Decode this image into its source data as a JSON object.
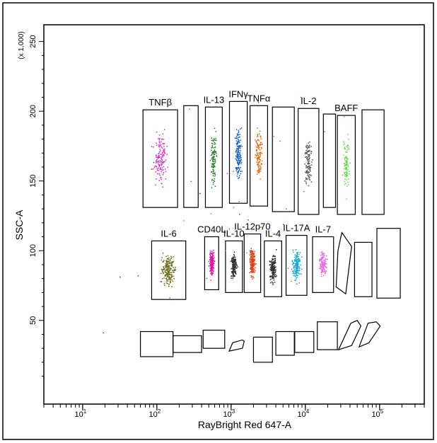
{
  "chart_data": {
    "type": "scatter",
    "xlabel": "RayBright Red 647-A",
    "ylabel": "SSC-A",
    "y_scale_note": "(x 1,000)",
    "x_scale": "log",
    "xlim": [
      3,
      400000
    ],
    "ylim": [
      -10,
      262
    ],
    "x_ticks": [
      {
        "value": 10,
        "base": "10",
        "exp": "1"
      },
      {
        "value": 100,
        "base": "10",
        "exp": "2"
      },
      {
        "value": 1000,
        "base": "10",
        "exp": "3"
      },
      {
        "value": 10000,
        "base": "10",
        "exp": "4"
      },
      {
        "value": 100000,
        "base": "10",
        "exp": "5"
      }
    ],
    "y_ticks": [
      {
        "value": 50,
        "label": "50"
      },
      {
        "value": 100,
        "label": "100"
      },
      {
        "value": 150,
        "label": "150"
      },
      {
        "value": 200,
        "label": "200"
      },
      {
        "value": 250,
        "label": "250"
      }
    ],
    "gates": [
      {
        "label": "TNFβ",
        "shape": "rect",
        "x": [
          65,
          190
        ],
        "y": [
          131,
          201
        ],
        "color": "#cc33cc",
        "n": 140
      },
      {
        "label": "",
        "shape": "rect",
        "x": [
          230,
          360
        ],
        "y": [
          131,
          204
        ],
        "color": "",
        "n": 0
      },
      {
        "label": "IL-13",
        "shape": "rect",
        "x": [
          450,
          760
        ],
        "y": [
          131,
          203
        ],
        "color": "#2e7d32",
        "n": 110
      },
      {
        "label": "IFNγ",
        "shape": "rect",
        "x": [
          950,
          1650
        ],
        "y": [
          134,
          207
        ],
        "color": "#1565c0",
        "n": 150
      },
      {
        "label": "TNFα",
        "shape": "rect",
        "x": [
          1800,
          3100
        ],
        "y": [
          132,
          204
        ],
        "color": "#e07020",
        "n": 120
      },
      {
        "label": "",
        "shape": "rect",
        "x": [
          3600,
          7100
        ],
        "y": [
          128,
          203
        ],
        "color": "",
        "n": 0
      },
      {
        "label": "IL-2",
        "shape": "rect",
        "x": [
          8000,
          15200
        ],
        "y": [
          126,
          202
        ],
        "color": "#555555",
        "n": 110
      },
      {
        "label": "",
        "shape": "rect",
        "x": [
          17500,
          25500
        ],
        "y": [
          131,
          198
        ],
        "color": "",
        "n": 0
      },
      {
        "label": "BAFF",
        "shape": "rect",
        "x": [
          27000,
          47000
        ],
        "y": [
          126,
          197
        ],
        "color": "#66dd55",
        "n": 100
      },
      {
        "label": "",
        "shape": "rect",
        "x": [
          58000,
          115000
        ],
        "y": [
          126,
          201
        ],
        "color": "",
        "n": 0
      },
      {
        "label": "IL-6",
        "shape": "rect",
        "x": [
          85,
          245
        ],
        "y": [
          65,
          107
        ],
        "color": "#6b6b1a",
        "n": 200
      },
      {
        "label": "CD40L",
        "shape": "rect",
        "x": [
          440,
          680
        ],
        "y": [
          72,
          110
        ],
        "color": "#e0169e",
        "n": 170
      },
      {
        "label": "IL-10",
        "shape": "rect",
        "x": [
          840,
          1420
        ],
        "y": [
          70,
          107
        ],
        "color": "#333333",
        "n": 170
      },
      {
        "label": "IL-12p70",
        "shape": "rect",
        "x": [
          1500,
          2500
        ],
        "y": [
          70,
          112
        ],
        "color": "#d84315",
        "n": 170
      },
      {
        "label": "IL-4",
        "shape": "rect",
        "x": [
          2800,
          4800
        ],
        "y": [
          67,
          107
        ],
        "color": "#333333",
        "n": 170
      },
      {
        "label": "IL-17A",
        "shape": "rect",
        "x": [
          5500,
          10500
        ],
        "y": [
          68,
          111
        ],
        "color": "#1ba8d4",
        "n": 160
      },
      {
        "label": "IL-7",
        "shape": "rect",
        "x": [
          12500,
          24000
        ],
        "y": [
          70,
          110
        ],
        "color": "#e070dd",
        "n": 140
      },
      {
        "label": "",
        "shape": "poly",
        "points": [
          [
            26000,
            74
          ],
          [
            35000,
            69
          ],
          [
            42000,
            103
          ],
          [
            31000,
            113
          ],
          [
            27500,
            100
          ]
        ],
        "color": "",
        "n": 0
      },
      {
        "label": "",
        "shape": "rect",
        "x": [
          46000,
          79000
        ],
        "y": [
          67,
          106
        ],
        "color": "",
        "n": 0
      },
      {
        "label": "",
        "shape": "rect",
        "x": [
          92000,
          190000
        ],
        "y": [
          66,
          116
        ],
        "color": "",
        "n": 0
      },
      {
        "label": "",
        "shape": "rect",
        "x": [
          60,
          165
        ],
        "y": [
          24,
          42
        ],
        "color": "",
        "n": 0
      },
      {
        "label": "",
        "shape": "rect",
        "x": [
          165,
          400
        ],
        "y": [
          27,
          39
        ],
        "color": "",
        "n": 0
      },
      {
        "label": "",
        "shape": "rect",
        "x": [
          420,
          820
        ],
        "y": [
          30,
          43
        ],
        "color": "",
        "n": 0
      },
      {
        "label": "",
        "shape": "poly",
        "points": [
          [
            940,
            28
          ],
          [
            1420,
            30
          ],
          [
            1500,
            35
          ],
          [
            1420,
            36
          ],
          [
            1050,
            34
          ]
        ],
        "color": "",
        "n": 0
      },
      {
        "label": "",
        "shape": "rect",
        "x": [
          2000,
          3600
        ],
        "y": [
          20,
          38
        ],
        "color": "",
        "n": 0
      },
      {
        "label": "",
        "shape": "rect",
        "x": [
          4000,
          7100
        ],
        "y": [
          25,
          42
        ],
        "color": "",
        "n": 0
      },
      {
        "label": "",
        "shape": "rect",
        "x": [
          7200,
          13000
        ],
        "y": [
          27,
          42
        ],
        "color": "",
        "n": 0
      },
      {
        "label": "",
        "shape": "rect",
        "x": [
          14500,
          27000
        ],
        "y": [
          29,
          49
        ],
        "color": "",
        "n": 0
      },
      {
        "label": "",
        "shape": "poly",
        "points": [
          [
            28000,
            29
          ],
          [
            42000,
            32
          ],
          [
            56000,
            46
          ],
          [
            50000,
            50
          ],
          [
            41000,
            48
          ]
        ],
        "color": "",
        "n": 0
      },
      {
        "label": "",
        "shape": "poly",
        "points": [
          [
            53000,
            31
          ],
          [
            72000,
            34
          ],
          [
            102000,
            46
          ],
          [
            90000,
            49
          ],
          [
            70000,
            48
          ]
        ],
        "color": "",
        "n": 0
      }
    ],
    "outliers": [
      {
        "x": 19,
        "y": 41
      },
      {
        "x": 32,
        "y": 81
      },
      {
        "x": 56,
        "y": 82
      },
      {
        "x": 380,
        "y": 141
      },
      {
        "x": 1300,
        "y": 126
      },
      {
        "x": 1700,
        "y": 122
      }
    ]
  }
}
